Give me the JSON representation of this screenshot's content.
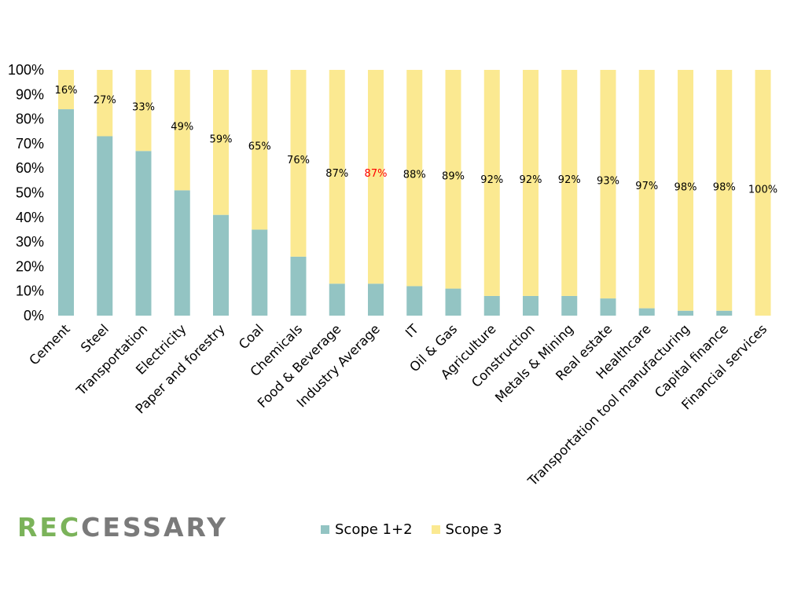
{
  "chart_data": {
    "type": "bar",
    "stacked": true,
    "normalized_percent": true,
    "categories": [
      "Cement",
      "Steel",
      "Transportation",
      "Electricity",
      "Paper and forestry",
      "Coal",
      "Chemicals",
      "Food & Beverage",
      "Industry Average",
      "IT",
      "Oil & Gas",
      "Agriculture",
      "Construction",
      "Metals & Mining",
      "Real estate",
      "Healthcare",
      "Transportation tool manufacturing",
      "Capital finance",
      "Financial services"
    ],
    "series": [
      {
        "name": "Scope 1+2",
        "color": "#93C4C3",
        "values": [
          84,
          73,
          67,
          51,
          41,
          35,
          24,
          13,
          13,
          12,
          11,
          8,
          8,
          8,
          7,
          3,
          2,
          2,
          0
        ]
      },
      {
        "name": "Scope 3",
        "color": "#FBE991",
        "values": [
          16,
          27,
          33,
          49,
          59,
          65,
          76,
          87,
          87,
          88,
          89,
          92,
          92,
          92,
          93,
          97,
          98,
          98,
          100
        ]
      }
    ],
    "data_labels": [
      "16%",
      "27%",
      "33%",
      "49%",
      "59%",
      "65%",
      "76%",
      "87%",
      "87%",
      "88%",
      "89%",
      "92%",
      "92%",
      "92%",
      "93%",
      "97%",
      "98%",
      "98%",
      "100%"
    ],
    "highlighted_label_color": "#FF0000",
    "highlighted_category": "Industry Average",
    "yticks": [
      "0%",
      "10%",
      "20%",
      "30%",
      "40%",
      "50%",
      "60%",
      "70%",
      "80%",
      "90%",
      "100%"
    ],
    "ylim": [
      0,
      100
    ],
    "title": "",
    "xlabel": "",
    "ylabel": "",
    "grid": false,
    "legend": "bottom"
  },
  "logo": {
    "part1": "REC",
    "part2": "CESSARY",
    "color1": "#7BB35A",
    "color2": "#7A7A7A"
  }
}
